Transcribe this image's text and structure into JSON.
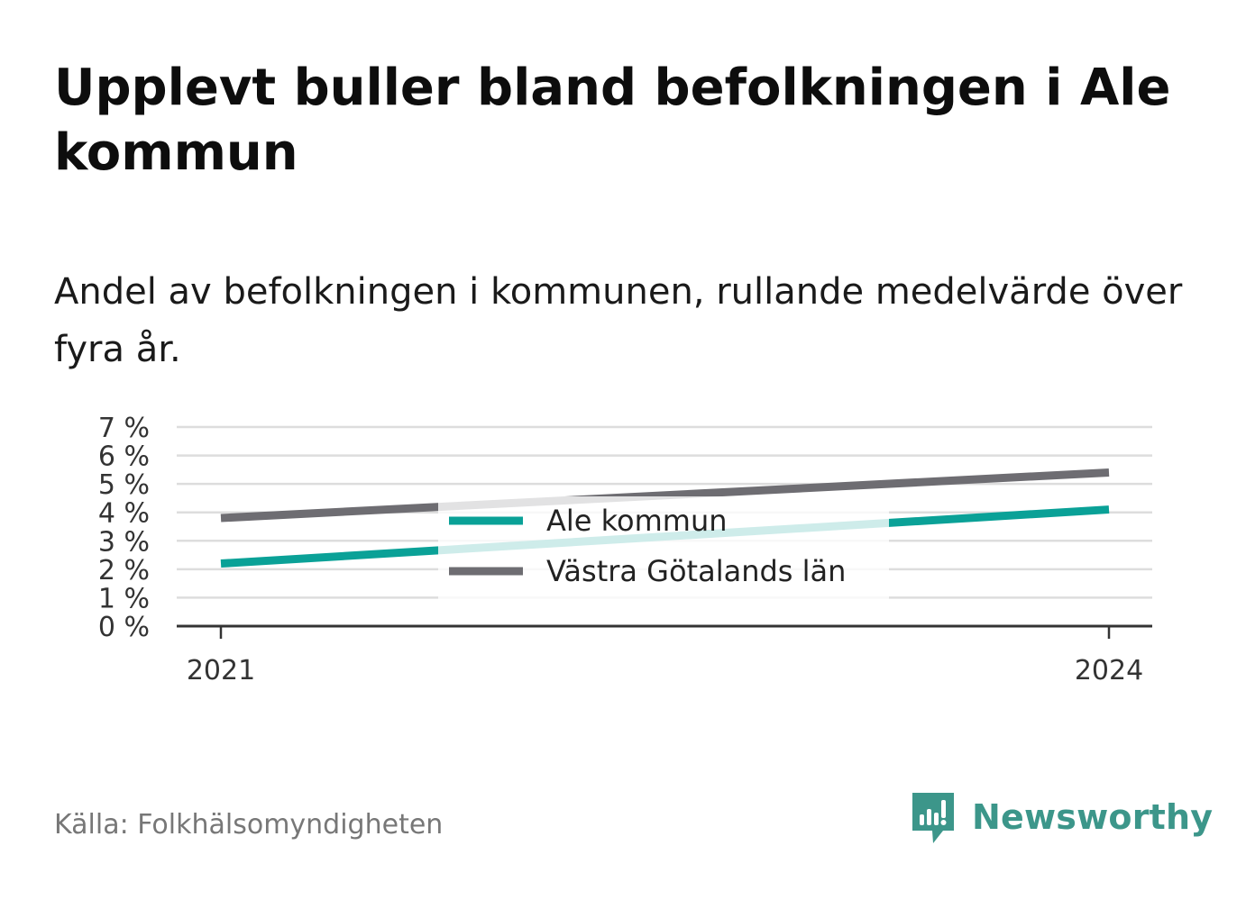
{
  "title": "Upplevt buller bland befolkningen i Ale kommun",
  "subtitle": "Andel av befolkningen i kommunen, rullande medelvärde över fyra år.",
  "source": "Källa: Folkhälsomyndigheten",
  "brand": {
    "name": "Newsworthy",
    "icon": "newsworthy-logo-icon",
    "color": "#3c968a"
  },
  "chart_data": {
    "type": "line",
    "x": [
      2021,
      2024
    ],
    "x_tick_labels": [
      "2021",
      "2024"
    ],
    "y_tick_labels": [
      "0 %",
      "1 %",
      "2 %",
      "3 %",
      "4 %",
      "5 %",
      "6 %",
      "7 %"
    ],
    "ylim": [
      0,
      7
    ],
    "grid": true,
    "legend_position": "center",
    "series": [
      {
        "name": "Ale kommun",
        "values": [
          2.2,
          4.1
        ],
        "color": "#0aa197"
      },
      {
        "name": "Västra Götalands län",
        "values": [
          3.8,
          5.4
        ],
        "color": "#6e6d72"
      }
    ]
  }
}
